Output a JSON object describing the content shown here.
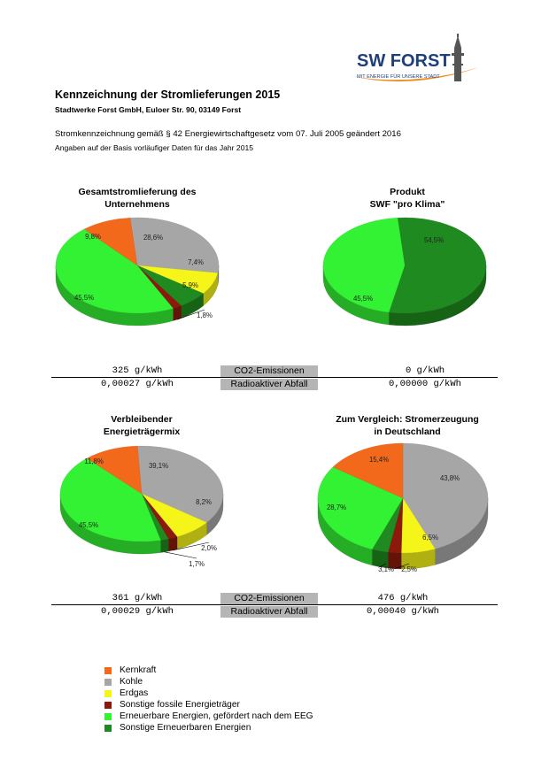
{
  "logo": {
    "brand": "SW FORST",
    "tagline": "MIT ENERGIE FÜR UNSERE STADT"
  },
  "header": {
    "title": "Kennzeichnung der Stromlieferungen 2015",
    "subtitle": "Stadtwerke Forst GmbH, Euloer Str. 90, 03149 Forst",
    "line1": "Stromkennzeichnung gemäß § 42 Energiewirtschaftgesetz vom 07. Juli 2005 geändert 2016",
    "line2": "Angaben auf der Basis vorläufiger Daten für das Jahr 2015"
  },
  "colors": {
    "Kernkraft": "#f2691c",
    "Kohle": "#a6a6a6",
    "Erdgas": "#f5f51a",
    "Sonstige fossile Energieträger": "#8b1a0c",
    "Erneuerbare Energien, gefördert nach dem EEG": "#33f233",
    "Sonstige Erneuerbaren Energien": "#1f8a1f"
  },
  "chart_data": [
    {
      "type": "pie",
      "title_lines": [
        "Gesamtstromlieferung des",
        "Unternehmens"
      ],
      "slices": [
        {
          "category": "Kohle",
          "value": 28.6,
          "label": "28,6%"
        },
        {
          "category": "Erdgas",
          "value": 7.4,
          "label": "7,4%"
        },
        {
          "category": "Sonstige Erneuerbaren Energien",
          "value": 5.9,
          "label": "5,9%"
        },
        {
          "category": "Sonstige fossile Energieträger",
          "value": 1.8,
          "label": "1,8%"
        },
        {
          "category": "Erneuerbare Energien, gefördert nach dem EEG",
          "value": 45.5,
          "label": "45,5%"
        },
        {
          "category": "Kernkraft",
          "value": 9.8,
          "label": "9,8%"
        }
      ]
    },
    {
      "type": "pie",
      "title_lines": [
        "Produkt",
        "SWF \"pro Klima\""
      ],
      "slices": [
        {
          "category": "Sonstige Erneuerbaren Energien",
          "value": 54.5,
          "label": "54,5%"
        },
        {
          "category": "Erneuerbare Energien, gefördert nach dem EEG",
          "value": 45.5,
          "label": "45,5%"
        }
      ]
    },
    {
      "type": "pie",
      "title_lines": [
        "Verbleibender",
        "Energieträgermix"
      ],
      "slices": [
        {
          "category": "Kohle",
          "value": 39.1,
          "label": "39,1%"
        },
        {
          "category": "Erdgas",
          "value": 8.2,
          "label": "8,2%"
        },
        {
          "category": "Sonstige fossile Energieträger",
          "value": 2.0,
          "label": "2,0%"
        },
        {
          "category": "Sonstige Erneuerbaren Energien",
          "value": 1.7,
          "label": "1,7%"
        },
        {
          "category": "Erneuerbare Energien, gefördert nach dem EEG",
          "value": 45.5,
          "label": "45,5%"
        },
        {
          "category": "Kernkraft",
          "value": 11.8,
          "label": "11,8%"
        }
      ]
    },
    {
      "type": "pie",
      "title_lines": [
        "Zum Vergleich: Stromerzeugung",
        "in Deutschland"
      ],
      "slices": [
        {
          "category": "Kohle",
          "value": 43.8,
          "label": "43,8%"
        },
        {
          "category": "Erdgas",
          "value": 6.5,
          "label": "6,5%"
        },
        {
          "category": "Sonstige fossile Energieträger",
          "value": 2.5,
          "label": "2,5%"
        },
        {
          "category": "Sonstige Erneuerbaren Energien",
          "value": 3.1,
          "label": "3,1%"
        },
        {
          "category": "Erneuerbare Energien, gefördert nach dem EEG",
          "value": 28.7,
          "label": "28,7%"
        },
        {
          "category": "Kernkraft",
          "value": 15.4,
          "label": "15,4%"
        }
      ]
    }
  ],
  "emissions": {
    "row1": {
      "left_co2": "325 g/kWh",
      "left_waste": "0,00027 g/kWh",
      "right_co2": "0 g/kWh",
      "right_waste": "0,00000 g/kWh"
    },
    "row2": {
      "left_co2": "361 g/kWh",
      "left_waste": "0,00029 g/kWh",
      "right_co2": "476 g/kWh",
      "right_waste": "0,00040 g/kWh"
    },
    "co2_label": "CO2-Emissionen",
    "waste_label": "Radioaktiver Abfall"
  },
  "legend": [
    {
      "label": "Kernkraft",
      "color": "#f2691c"
    },
    {
      "label": "Kohle",
      "color": "#a6a6a6"
    },
    {
      "label": "Erdgas",
      "color": "#f5f51a"
    },
    {
      "label": "Sonstige fossile Energieträger",
      "color": "#8b1a0c"
    },
    {
      "label": "Erneuerbare Energien, gefördert nach dem EEG",
      "color": "#33f233"
    },
    {
      "label": "Sonstige Erneuerbaren Energien",
      "color": "#1f8a1f"
    }
  ]
}
